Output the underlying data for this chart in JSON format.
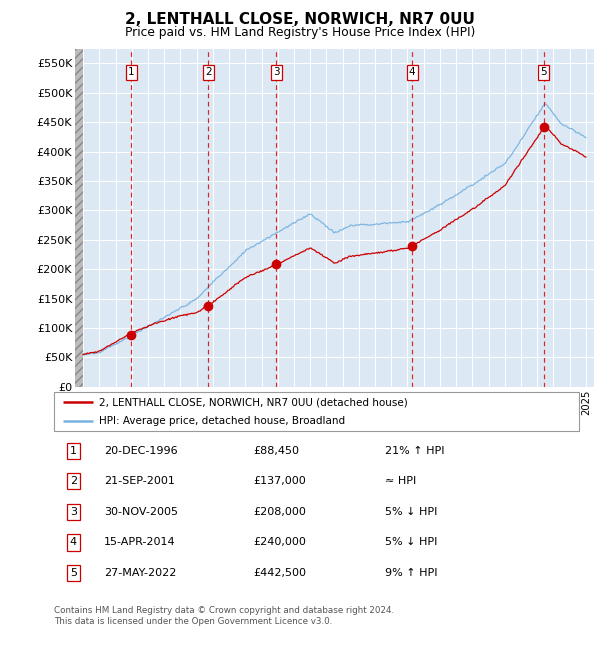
{
  "title": "2, LENTHALL CLOSE, NORWICH, NR7 0UU",
  "subtitle": "Price paid vs. HM Land Registry's House Price Index (HPI)",
  "legend_line1": "2, LENTHALL CLOSE, NORWICH, NR7 0UU (detached house)",
  "legend_line2": "HPI: Average price, detached house, Broadland",
  "footer1": "Contains HM Land Registry data © Crown copyright and database right 2024.",
  "footer2": "This data is licensed under the Open Government Licence v3.0.",
  "table": [
    {
      "num": 1,
      "date": "20-DEC-1996",
      "price": "£88,450",
      "rel": "21% ↑ HPI"
    },
    {
      "num": 2,
      "date": "21-SEP-2001",
      "price": "£137,000",
      "rel": "≈ HPI"
    },
    {
      "num": 3,
      "date": "30-NOV-2005",
      "price": "£208,000",
      "rel": "5% ↓ HPI"
    },
    {
      "num": 4,
      "date": "15-APR-2014",
      "price": "£240,000",
      "rel": "5% ↓ HPI"
    },
    {
      "num": 5,
      "date": "27-MAY-2022",
      "price": "£442,500",
      "rel": "9% ↑ HPI"
    }
  ],
  "sales": [
    {
      "year": 1996.97,
      "price": 88450
    },
    {
      "year": 2001.73,
      "price": 137000
    },
    {
      "year": 2005.92,
      "price": 208000
    },
    {
      "year": 2014.29,
      "price": 240000
    },
    {
      "year": 2022.41,
      "price": 442500
    }
  ],
  "hpi_line_color": "#7ab3e0",
  "sales_line_color": "#cc0000",
  "sales_dot_color": "#cc0000",
  "background_plot": "#dce9f5",
  "ylim": [
    0,
    575000
  ],
  "yticks": [
    0,
    50000,
    100000,
    150000,
    200000,
    250000,
    300000,
    350000,
    400000,
    450000,
    500000,
    550000
  ],
  "xlim": [
    1993.5,
    2025.5
  ],
  "xticks": [
    1994,
    1995,
    1996,
    1997,
    1998,
    1999,
    2000,
    2001,
    2002,
    2003,
    2004,
    2005,
    2006,
    2007,
    2008,
    2009,
    2010,
    2011,
    2012,
    2013,
    2014,
    2015,
    2016,
    2017,
    2018,
    2019,
    2020,
    2021,
    2022,
    2023,
    2024,
    2025
  ]
}
